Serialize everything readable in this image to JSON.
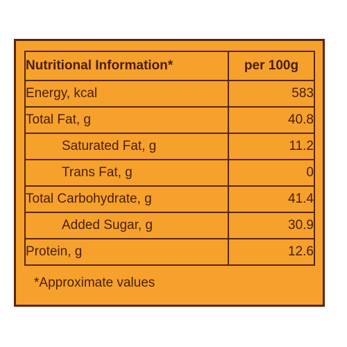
{
  "table": {
    "header": {
      "label": "Nutritional Information*",
      "value": "per 100g"
    },
    "rows": [
      {
        "label": "Energy, kcal",
        "value": "583"
      },
      {
        "label": "Total Fat, g",
        "value": "40.8"
      },
      {
        "label": "Saturated Fat, g",
        "value": "11.2"
      },
      {
        "label": "Trans Fat, g",
        "value": "0"
      },
      {
        "label": "Total Carbohydrate, g",
        "value": "41.4"
      },
      {
        "label": "Added Sugar, g",
        "value": "30.9"
      },
      {
        "label": "Protein, g",
        "value": "12.6"
      }
    ]
  },
  "footnote": "*Approximate values",
  "colors": {
    "panel_background": "#f5a12c",
    "border": "#5a2510",
    "text": "#4a1e0c"
  }
}
